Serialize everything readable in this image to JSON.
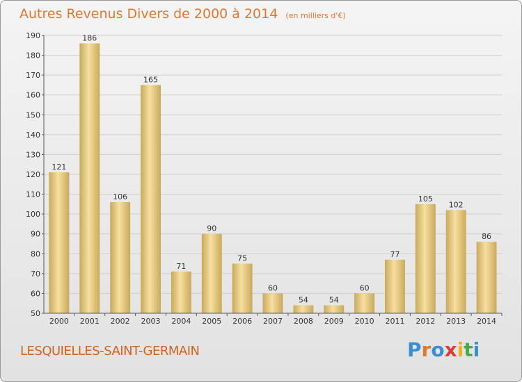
{
  "header": {
    "title": "Autres Revenus Divers de 2000 à 2014",
    "unit": "(en milliers d'€)"
  },
  "footer": {
    "commune": "LESQUIELLES-SAINT-GERMAIN",
    "logo_letters": [
      "P",
      "r",
      "o",
      "x",
      "i",
      "t",
      "i"
    ],
    "logo_colors": [
      "#3a8fd0",
      "#e0782e",
      "#3a8fd0",
      "#e03a3a",
      "#f0b020",
      "#4aa84a",
      "#3a8fd0"
    ]
  },
  "chart_data": {
    "type": "bar",
    "title": "Autres Revenus Divers de 2000 à 2014",
    "subtitle": "(en milliers d'€)",
    "xlabel": "",
    "ylabel": "",
    "categories": [
      "2000",
      "2001",
      "2002",
      "2003",
      "2004",
      "2005",
      "2006",
      "2007",
      "2008",
      "2009",
      "2010",
      "2011",
      "2012",
      "2013",
      "2014"
    ],
    "values": [
      121,
      186,
      106,
      165,
      71,
      90,
      75,
      60,
      54,
      54,
      60,
      77,
      105,
      102,
      86
    ],
    "ylim": [
      50,
      190
    ],
    "yticks": [
      50,
      60,
      70,
      80,
      90,
      100,
      110,
      120,
      130,
      140,
      150,
      160,
      170,
      180,
      190
    ],
    "grid": true,
    "legend": "none",
    "colors": {
      "bar_top": "#f7dfa0",
      "bar_bottom": "#c9a95c",
      "grid": "#cfcfcf",
      "axis": "#555555"
    }
  }
}
